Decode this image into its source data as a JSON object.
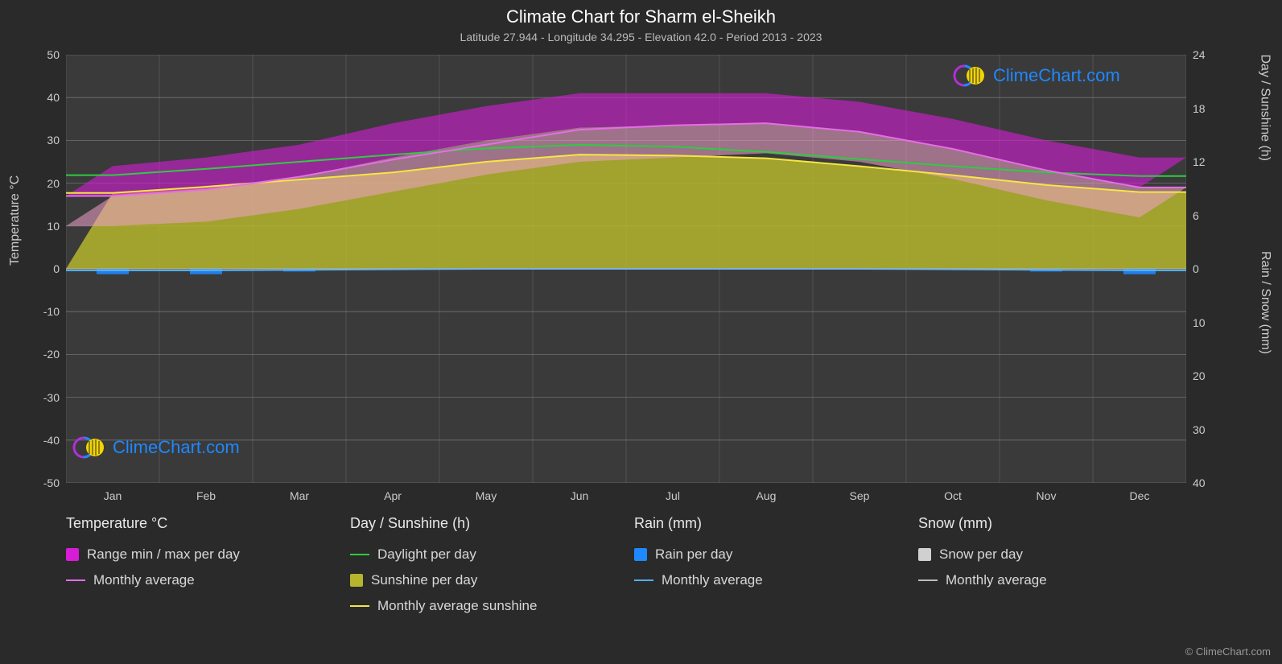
{
  "title": "Climate Chart for Sharm el-Sheikh",
  "subtitle": "Latitude 27.944 - Longitude 34.295 - Elevation 42.0 - Period 2013 - 2023",
  "axis_labels": {
    "left": "Temperature °C",
    "right_top": "Day / Sunshine (h)",
    "right_bottom": "Rain / Snow (mm)"
  },
  "copyright": "© ClimeChart.com",
  "watermark_text": "ClimeChart.com",
  "chart": {
    "type": "climate_timeseries",
    "background_color": "#2a2a2a",
    "plot_background_color": "#3a3a3a",
    "grid_color": "#888888",
    "grid_width": 0.5,
    "months": [
      "Jan",
      "Feb",
      "Mar",
      "Apr",
      "May",
      "Jun",
      "Jul",
      "Aug",
      "Sep",
      "Oct",
      "Nov",
      "Dec"
    ],
    "left_axis": {
      "label": "Temperature °C",
      "min": -50,
      "max": 50,
      "step": 10
    },
    "right_axis_top": {
      "label": "Day / Sunshine (h)",
      "ticks": [
        0,
        6,
        12,
        18,
        24
      ],
      "temp_equiv": [
        0,
        12.5,
        25,
        37.5,
        50
      ]
    },
    "right_axis_bottom": {
      "label": "Rain / Snow (mm)",
      "ticks": [
        0,
        10,
        20,
        30,
        40
      ],
      "temp_equiv": [
        0,
        -12.5,
        -25,
        -37.5,
        -50
      ]
    },
    "series": {
      "temp_range": {
        "label": "Range min / max per day",
        "color": "#d61cd6",
        "top_color": "#d61cd6",
        "bottom_color": "#f0a0c8",
        "fill_opacity": 0.6,
        "min": [
          10,
          11,
          14,
          18,
          22,
          25,
          26,
          27,
          25,
          21,
          16,
          12
        ],
        "max": [
          24,
          26,
          29,
          34,
          38,
          41,
          41,
          41,
          39,
          35,
          30,
          26
        ]
      },
      "temp_monthly_avg": {
        "label": "Monthly average",
        "color": "#e66ee6",
        "line_width": 2,
        "values": [
          17,
          18.5,
          21.5,
          25.5,
          29,
          32.5,
          33.5,
          34,
          32,
          28,
          23,
          19
        ]
      },
      "daylight": {
        "label": "Daylight per day",
        "color": "#2ecc40",
        "line_width": 2,
        "values_hours": [
          10.5,
          11.2,
          12,
          12.8,
          13.5,
          13.9,
          13.7,
          13.1,
          12.3,
          11.5,
          10.8,
          10.4
        ]
      },
      "sunshine_fill": {
        "label": "Sunshine per day",
        "color": "#b5b52e",
        "fill_opacity": 0.85,
        "values_hours": [
          8.5,
          9.2,
          10,
          10.8,
          12,
          12.8,
          12.7,
          12.4,
          11.5,
          10.5,
          9.4,
          8.6
        ]
      },
      "sunshine_monthly_avg": {
        "label": "Monthly average sunshine",
        "color": "#f5e642",
        "line_width": 2,
        "values_hours": [
          8.5,
          9.2,
          10,
          10.8,
          12,
          12.8,
          12.7,
          12.4,
          11.5,
          10.5,
          9.4,
          8.6
        ]
      },
      "rain": {
        "label": "Rain per day",
        "color": "#1e88ff",
        "fill_opacity": 0.9,
        "values_mm": [
          1,
          1,
          0.5,
          0.2,
          0.1,
          0,
          0,
          0,
          0,
          0.2,
          0.5,
          1
        ]
      },
      "rain_monthly_avg": {
        "label": "Monthly average",
        "color": "#4fb0ff",
        "line_width": 2,
        "values_mm": [
          0.3,
          0.3,
          0.2,
          0.1,
          0,
          0,
          0,
          0,
          0,
          0.1,
          0.2,
          0.3
        ]
      },
      "snow": {
        "label": "Snow per day",
        "color": "#d0d0d0",
        "values_mm": [
          0,
          0,
          0,
          0,
          0,
          0,
          0,
          0,
          0,
          0,
          0,
          0
        ]
      },
      "snow_monthly_avg": {
        "label": "Monthly average",
        "color": "#bcbcbc",
        "line_width": 2,
        "values_mm": [
          0,
          0,
          0,
          0,
          0,
          0,
          0,
          0,
          0,
          0,
          0,
          0
        ]
      }
    }
  },
  "legend": {
    "groups": [
      {
        "header": "Temperature °C",
        "items": [
          {
            "type": "swatch",
            "color": "#d61cd6",
            "label": "Range min / max per day"
          },
          {
            "type": "line",
            "color": "#e66ee6",
            "label": "Monthly average"
          }
        ]
      },
      {
        "header": "Day / Sunshine (h)",
        "items": [
          {
            "type": "line",
            "color": "#2ecc40",
            "label": "Daylight per day"
          },
          {
            "type": "swatch",
            "color": "#b5b52e",
            "label": "Sunshine per day"
          },
          {
            "type": "line",
            "color": "#f5e642",
            "label": "Monthly average sunshine"
          }
        ]
      },
      {
        "header": "Rain (mm)",
        "items": [
          {
            "type": "swatch",
            "color": "#1e88ff",
            "label": "Rain per day"
          },
          {
            "type": "line",
            "color": "#4fb0ff",
            "label": "Monthly average"
          }
        ]
      },
      {
        "header": "Snow (mm)",
        "items": [
          {
            "type": "swatch",
            "color": "#d0d0d0",
            "label": "Snow per day"
          },
          {
            "type": "line",
            "color": "#bcbcbc",
            "label": "Monthly average"
          }
        ]
      }
    ]
  }
}
